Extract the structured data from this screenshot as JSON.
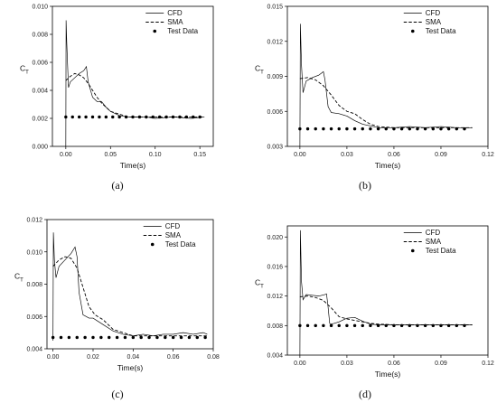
{
  "chart_data": [
    {
      "type": "line",
      "panel_label": "(a)",
      "xlabel": "Time(s)",
      "ylabel": "C",
      "ylabel_sub": "T",
      "xlim": [
        -0.015,
        0.165
      ],
      "ylim": [
        0.0,
        0.01
      ],
      "xticks": [
        0.0,
        0.05,
        0.1,
        0.15
      ],
      "xtick_labels": [
        "0.00",
        "0.05",
        "0.10",
        "0.15"
      ],
      "yticks": [
        0.0,
        0.002,
        0.004,
        0.006,
        0.008,
        0.01
      ],
      "ytick_labels": [
        "0.000",
        "0.002",
        "0.004",
        "0.006",
        "0.008",
        "0.010"
      ],
      "legend_position": "top-right",
      "series": [
        {
          "name": "CFD",
          "style": "solid",
          "x": [
            0.0,
            0.0003,
            0.001,
            0.002,
            0.003,
            0.005,
            0.01,
            0.015,
            0.02,
            0.023,
            0.025,
            0.03,
            0.035,
            0.04,
            0.045,
            0.05,
            0.06,
            0.07,
            0.08,
            0.09,
            0.1,
            0.12,
            0.14,
            0.155
          ],
          "y": [
            0.0,
            0.009,
            0.0075,
            0.0058,
            0.0042,
            0.0046,
            0.0049,
            0.0052,
            0.0054,
            0.0057,
            0.0046,
            0.0035,
            0.0032,
            0.0032,
            0.0028,
            0.0025,
            0.0022,
            0.0021,
            0.0021,
            0.0021,
            0.002,
            0.0021,
            0.002,
            0.0021
          ]
        },
        {
          "name": "SMA",
          "style": "dashed",
          "x": [
            0.0,
            0.005,
            0.01,
            0.015,
            0.02,
            0.025,
            0.03,
            0.035,
            0.04,
            0.045,
            0.05,
            0.06,
            0.07,
            0.08,
            0.1,
            0.12,
            0.155
          ],
          "y": [
            0.0047,
            0.005,
            0.0052,
            0.0051,
            0.0049,
            0.0045,
            0.004,
            0.0035,
            0.0031,
            0.0028,
            0.0025,
            0.0023,
            0.0021,
            0.0021,
            0.0021,
            0.0021,
            0.0021
          ]
        },
        {
          "name": "Test Data",
          "style": "dots",
          "x": [
            0.0,
            0.0075,
            0.015,
            0.0225,
            0.03,
            0.0375,
            0.045,
            0.0525,
            0.06,
            0.0675,
            0.075,
            0.0825,
            0.09,
            0.0975,
            0.105,
            0.1125,
            0.12,
            0.1275,
            0.135,
            0.1425,
            0.15
          ],
          "y": [
            0.0021,
            0.0021,
            0.0021,
            0.0021,
            0.0021,
            0.0021,
            0.0021,
            0.0021,
            0.0021,
            0.0021,
            0.0021,
            0.0021,
            0.0021,
            0.0021,
            0.0021,
            0.0021,
            0.0021,
            0.0021,
            0.0021,
            0.0021,
            0.0021
          ]
        }
      ]
    },
    {
      "type": "line",
      "panel_label": "(b)",
      "xlabel": "Time(s)",
      "ylabel": "C",
      "ylabel_sub": "T",
      "xlim": [
        -0.008,
        0.12
      ],
      "ylim": [
        0.003,
        0.015
      ],
      "xticks": [
        0.0,
        0.03,
        0.06,
        0.09,
        0.12
      ],
      "xtick_labels": [
        "0.00",
        "0.03",
        "0.06",
        "0.09",
        "0.12"
      ],
      "yticks": [
        0.003,
        0.006,
        0.009,
        0.012,
        0.015
      ],
      "ytick_labels": [
        "0.003",
        "0.006",
        "0.009",
        "0.012",
        "0.015"
      ],
      "legend_position": "top-right",
      "series": [
        {
          "name": "CFD",
          "style": "solid",
          "x": [
            0.0,
            0.0003,
            0.001,
            0.002,
            0.004,
            0.008,
            0.012,
            0.015,
            0.016,
            0.018,
            0.02,
            0.025,
            0.03,
            0.035,
            0.04,
            0.05,
            0.06,
            0.07,
            0.08,
            0.09,
            0.1,
            0.11
          ],
          "y": [
            0.003,
            0.0135,
            0.01,
            0.0076,
            0.0086,
            0.0089,
            0.0091,
            0.0094,
            0.0087,
            0.0064,
            0.0059,
            0.0058,
            0.0056,
            0.0052,
            0.0049,
            0.0046,
            0.0046,
            0.0047,
            0.0046,
            0.0047,
            0.0046,
            0.0046
          ]
        },
        {
          "name": "SMA",
          "style": "dashed",
          "x": [
            0.0,
            0.005,
            0.01,
            0.015,
            0.02,
            0.025,
            0.03,
            0.035,
            0.04,
            0.045,
            0.05,
            0.06,
            0.07,
            0.08,
            0.09,
            0.11
          ],
          "y": [
            0.0088,
            0.0089,
            0.0087,
            0.0082,
            0.0074,
            0.0065,
            0.006,
            0.0058,
            0.0053,
            0.0049,
            0.0047,
            0.0046,
            0.0046,
            0.0046,
            0.0046,
            0.0046
          ]
        },
        {
          "name": "Test Data",
          "style": "dots",
          "x": [
            0.0,
            0.005,
            0.01,
            0.015,
            0.02,
            0.025,
            0.03,
            0.035,
            0.04,
            0.045,
            0.05,
            0.055,
            0.06,
            0.065,
            0.07,
            0.075,
            0.08,
            0.085,
            0.09,
            0.095,
            0.1,
            0.105
          ],
          "y": [
            0.0045,
            0.0045,
            0.0045,
            0.0045,
            0.0045,
            0.0045,
            0.0045,
            0.0045,
            0.0045,
            0.0045,
            0.0045,
            0.0045,
            0.0045,
            0.0045,
            0.0045,
            0.0045,
            0.0045,
            0.0045,
            0.0045,
            0.0045,
            0.0045,
            0.0045
          ]
        }
      ]
    },
    {
      "type": "line",
      "panel_label": "(c)",
      "xlabel": "Time(s)",
      "ylabel": "C",
      "ylabel_sub": "T",
      "xlim": [
        -0.003,
        0.08
      ],
      "ylim": [
        0.004,
        0.012
      ],
      "xticks": [
        0.0,
        0.02,
        0.04,
        0.06,
        0.08
      ],
      "xtick_labels": [
        "0.00",
        "0.02",
        "0.04",
        "0.06",
        "0.08"
      ],
      "yticks": [
        0.004,
        0.006,
        0.008,
        0.01,
        0.012
      ],
      "ytick_labels": [
        "0.004",
        "0.006",
        "0.008",
        "0.010",
        "0.012"
      ],
      "legend_position": "top-right",
      "series": [
        {
          "name": "CFD",
          "style": "solid",
          "x": [
            0.0,
            0.0002,
            0.0007,
            0.0015,
            0.003,
            0.006,
            0.009,
            0.011,
            0.012,
            0.013,
            0.015,
            0.018,
            0.02,
            0.025,
            0.03,
            0.035,
            0.04,
            0.045,
            0.05,
            0.055,
            0.06,
            0.065,
            0.07,
            0.075,
            0.077
          ],
          "y": [
            0.0045,
            0.0112,
            0.0095,
            0.0084,
            0.0091,
            0.0095,
            0.0099,
            0.0103,
            0.0097,
            0.0075,
            0.0061,
            0.0059,
            0.0059,
            0.0055,
            0.0051,
            0.0049,
            0.0048,
            0.0049,
            0.0048,
            0.0049,
            0.0049,
            0.005,
            0.0049,
            0.005,
            0.0049
          ]
        },
        {
          "name": "SMA",
          "style": "dashed",
          "x": [
            0.0,
            0.003,
            0.006,
            0.009,
            0.012,
            0.015,
            0.018,
            0.021,
            0.025,
            0.03,
            0.035,
            0.04,
            0.05,
            0.06,
            0.077
          ],
          "y": [
            0.0091,
            0.0095,
            0.0097,
            0.0096,
            0.009,
            0.0078,
            0.0066,
            0.0061,
            0.0058,
            0.0052,
            0.005,
            0.0048,
            0.0048,
            0.0048,
            0.0048
          ]
        },
        {
          "name": "Test Data",
          "style": "dots",
          "x": [
            0.0,
            0.004,
            0.008,
            0.012,
            0.016,
            0.02,
            0.024,
            0.028,
            0.032,
            0.036,
            0.04,
            0.044,
            0.048,
            0.052,
            0.056,
            0.06,
            0.064,
            0.068,
            0.072,
            0.076
          ],
          "y": [
            0.0047,
            0.0047,
            0.0047,
            0.0047,
            0.0047,
            0.0047,
            0.0047,
            0.0047,
            0.0047,
            0.0047,
            0.0047,
            0.0047,
            0.0047,
            0.0047,
            0.0047,
            0.0047,
            0.0047,
            0.0047,
            0.0047,
            0.0047
          ]
        }
      ]
    },
    {
      "type": "line",
      "panel_label": "(d)",
      "xlabel": "Time(s)",
      "ylabel": "C",
      "ylabel_sub": "T",
      "xlim": [
        -0.008,
        0.12
      ],
      "ylim": [
        0.004,
        0.0215
      ],
      "xticks": [
        0.0,
        0.03,
        0.06,
        0.09,
        0.12
      ],
      "xtick_labels": [
        "0.00",
        "0.03",
        "0.06",
        "0.09",
        "0.12"
      ],
      "yticks": [
        0.004,
        0.008,
        0.012,
        0.016,
        0.02
      ],
      "ytick_labels": [
        "0.004",
        "0.008",
        "0.012",
        "0.016",
        "0.020"
      ],
      "legend_position": "top-right",
      "series": [
        {
          "name": "CFD",
          "style": "solid",
          "x": [
            0.0,
            0.0003,
            0.001,
            0.002,
            0.004,
            0.008,
            0.012,
            0.016,
            0.017,
            0.018,
            0.019,
            0.02,
            0.022,
            0.025,
            0.03,
            0.035,
            0.04,
            0.045,
            0.05,
            0.06,
            0.07,
            0.08,
            0.09,
            0.1,
            0.11
          ],
          "y": [
            0.004,
            0.0209,
            0.014,
            0.0115,
            0.0122,
            0.0121,
            0.012,
            0.0122,
            0.0123,
            0.0105,
            0.0083,
            0.0082,
            0.0083,
            0.0085,
            0.009,
            0.0091,
            0.0086,
            0.0082,
            0.0081,
            0.0081,
            0.0081,
            0.0081,
            0.0081,
            0.0081,
            0.0081
          ]
        },
        {
          "name": "SMA",
          "style": "dashed",
          "x": [
            0.0,
            0.005,
            0.01,
            0.015,
            0.02,
            0.025,
            0.03,
            0.035,
            0.04,
            0.045,
            0.05,
            0.06,
            0.08,
            0.11
          ],
          "y": [
            0.0119,
            0.012,
            0.0118,
            0.0114,
            0.0104,
            0.0092,
            0.0089,
            0.0087,
            0.0085,
            0.0083,
            0.0082,
            0.0081,
            0.0081,
            0.0081
          ]
        },
        {
          "name": "Test Data",
          "style": "dots",
          "x": [
            0.0,
            0.005,
            0.01,
            0.015,
            0.02,
            0.025,
            0.03,
            0.035,
            0.04,
            0.045,
            0.05,
            0.055,
            0.06,
            0.065,
            0.07,
            0.075,
            0.08,
            0.085,
            0.09,
            0.095,
            0.1,
            0.105
          ],
          "y": [
            0.008,
            0.008,
            0.008,
            0.008,
            0.008,
            0.008,
            0.008,
            0.008,
            0.008,
            0.008,
            0.008,
            0.008,
            0.008,
            0.008,
            0.008,
            0.008,
            0.008,
            0.008,
            0.008,
            0.008,
            0.008,
            0.008
          ]
        }
      ]
    }
  ]
}
